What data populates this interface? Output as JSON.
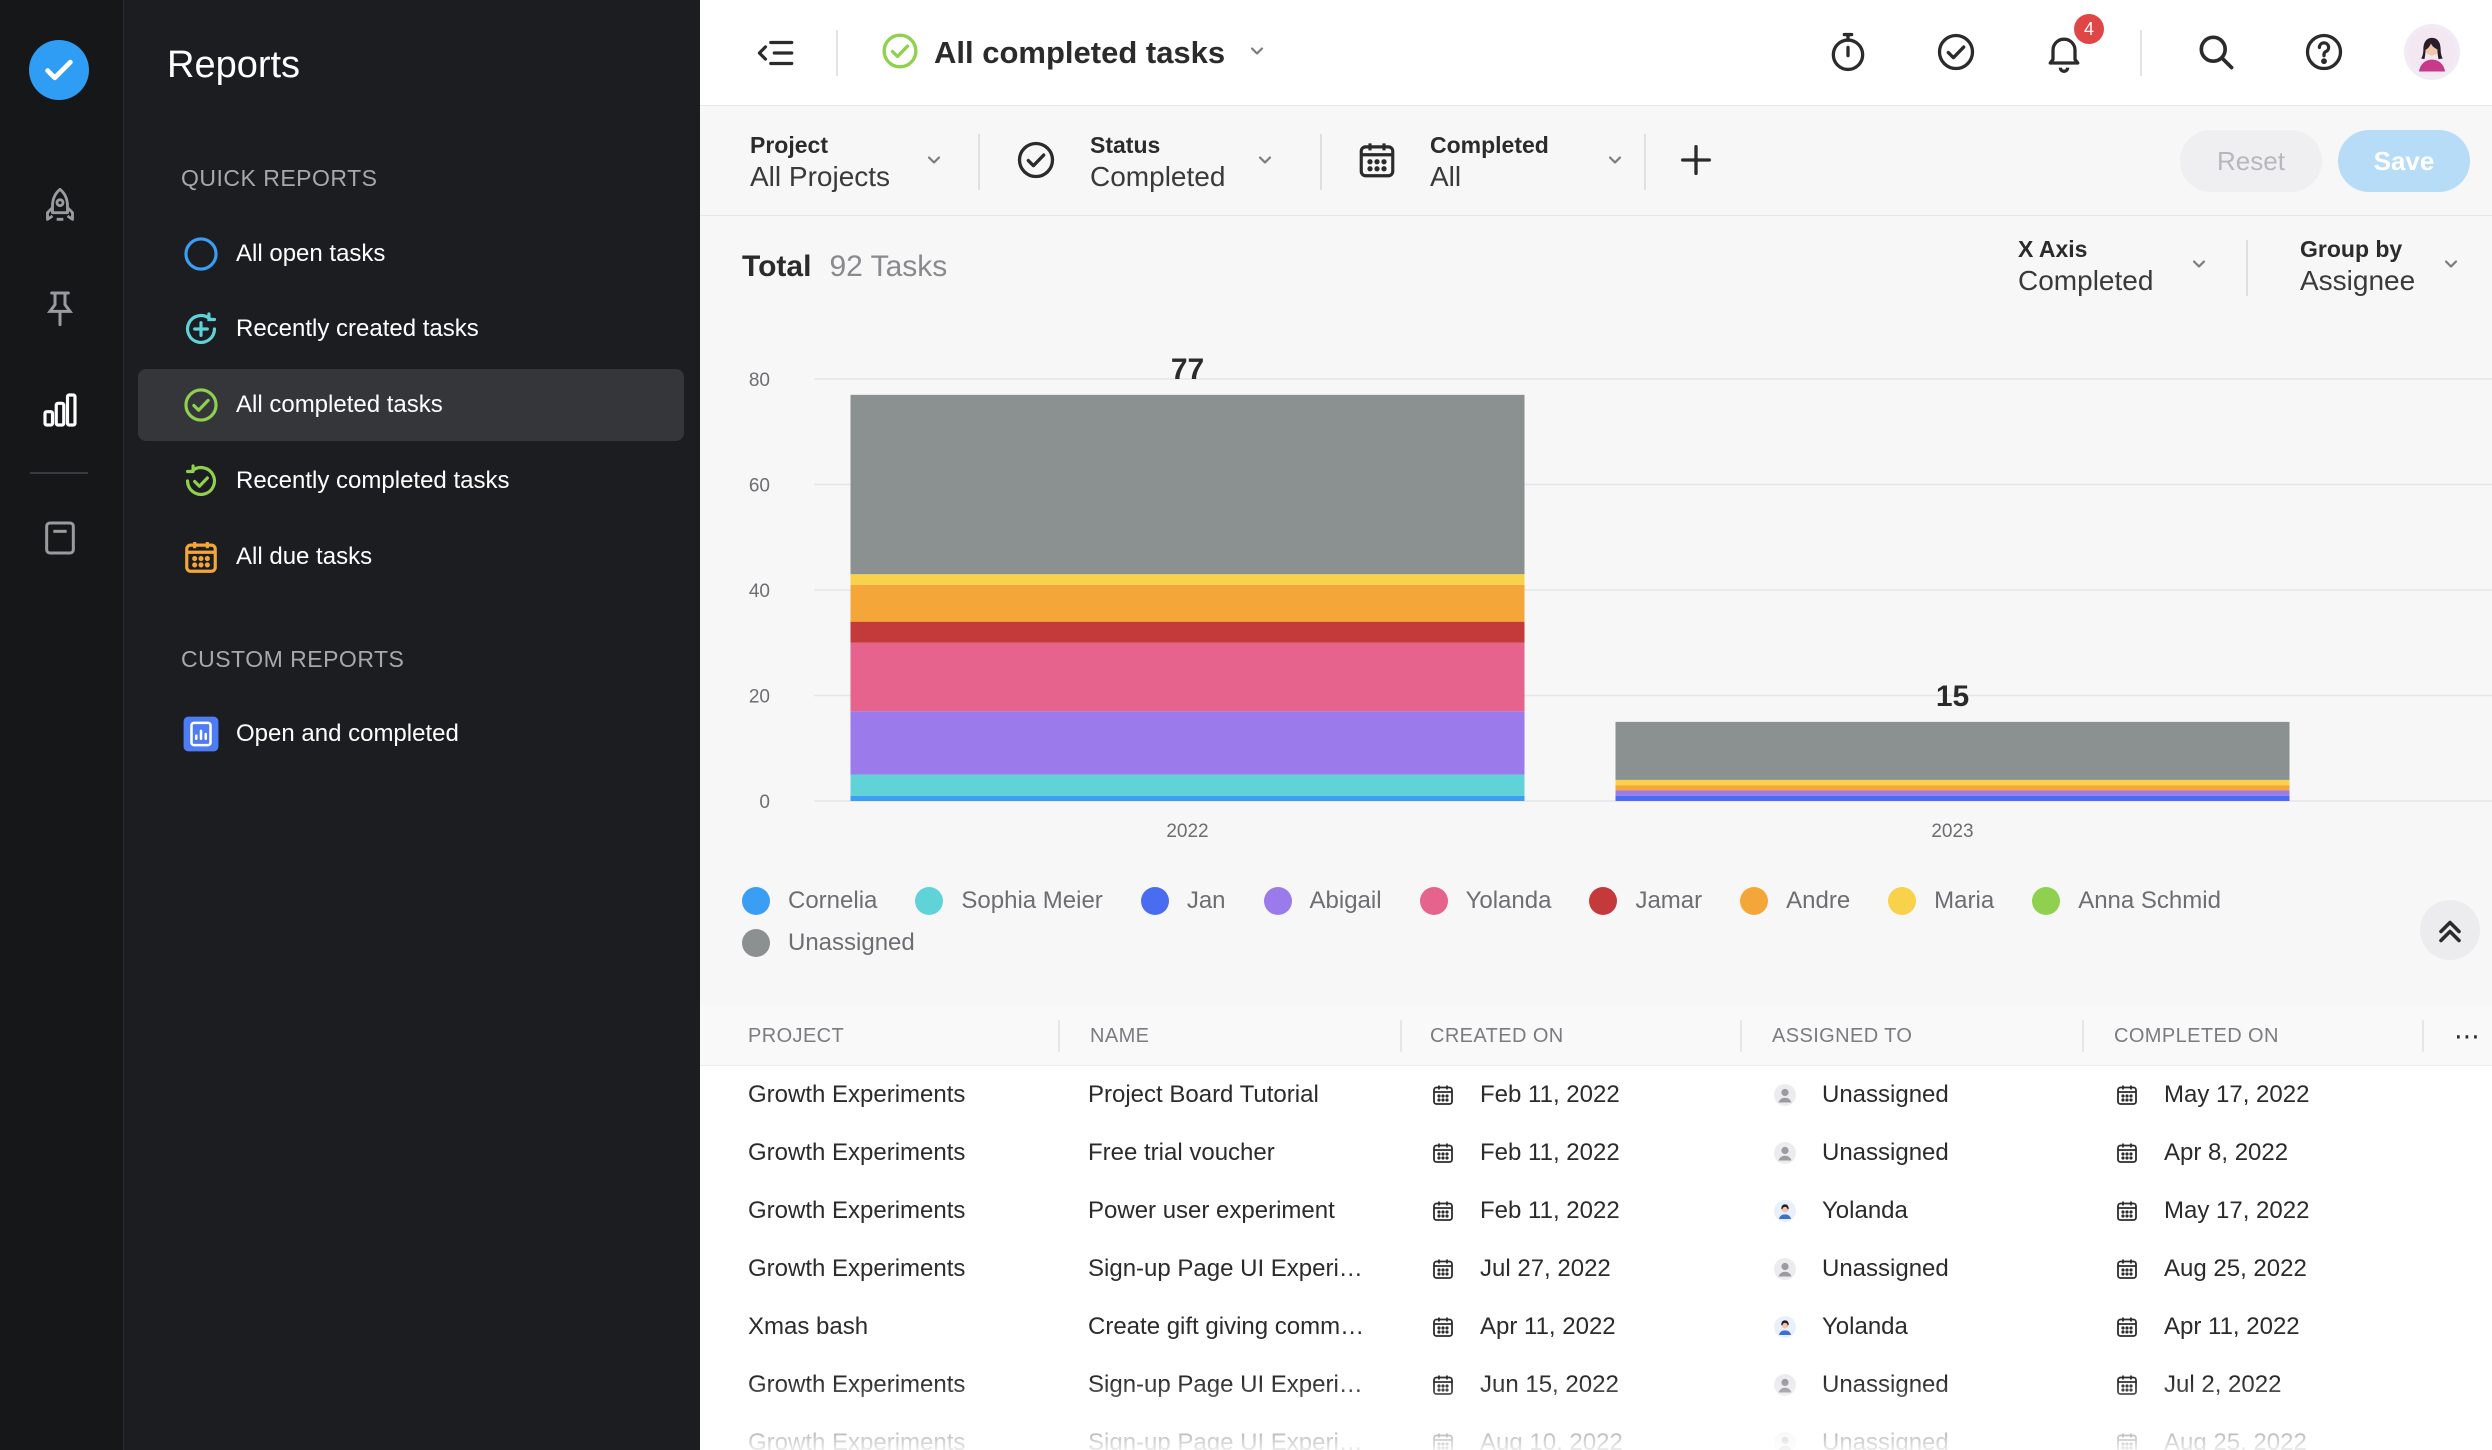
{
  "sidebar": {
    "title": "Reports",
    "quick_reports_label": "QUICK REPORTS",
    "custom_reports_label": "CUSTOM REPORTS",
    "quick_items": [
      {
        "label": "All open tasks",
        "icon": "open-circle-icon"
      },
      {
        "label": "Recently created tasks",
        "icon": "plus-circle-icon"
      },
      {
        "label": "All completed tasks",
        "icon": "check-circle-icon"
      },
      {
        "label": "Recently completed tasks",
        "icon": "refresh-check-icon"
      },
      {
        "label": "All due tasks",
        "icon": "calendar-icon"
      }
    ],
    "custom_items": [
      {
        "label": "Open and completed",
        "icon": "report-icon"
      }
    ]
  },
  "topbar": {
    "view_title": "All completed tasks",
    "notification_count": "4"
  },
  "filters": {
    "project": {
      "label": "Project",
      "value": "All Projects"
    },
    "status": {
      "label": "Status",
      "value": "Completed"
    },
    "completed": {
      "label": "Completed",
      "value": "All"
    },
    "reset_label": "Reset",
    "save_label": "Save"
  },
  "summary": {
    "total_label": "Total",
    "total_value": "92 Tasks",
    "x_axis": {
      "label": "X Axis",
      "value": "Completed"
    },
    "group_by": {
      "label": "Group by",
      "value": "Assignee"
    }
  },
  "chart_data": {
    "type": "bar",
    "stacked": true,
    "categories": [
      "2022",
      "2023"
    ],
    "totals": [
      77,
      15
    ],
    "ylim": [
      0,
      80
    ],
    "yticks": [
      0,
      20,
      40,
      60,
      80
    ],
    "series": [
      {
        "name": "Cornelia",
        "color": "#3b9ef5",
        "values": [
          1,
          0
        ]
      },
      {
        "name": "Sophia Meier",
        "color": "#5fd3d8",
        "values": [
          4,
          0
        ]
      },
      {
        "name": "Jan",
        "color": "#4a6cf0",
        "values": [
          0,
          1
        ]
      },
      {
        "name": "Abigail",
        "color": "#9b7beb",
        "values": [
          12,
          1
        ]
      },
      {
        "name": "Yolanda",
        "color": "#e5638c",
        "values": [
          13,
          0
        ]
      },
      {
        "name": "Jamar",
        "color": "#c43a3a",
        "values": [
          4,
          0
        ]
      },
      {
        "name": "Andre",
        "color": "#f5a638",
        "values": [
          7,
          1
        ]
      },
      {
        "name": "Maria",
        "color": "#f7d24a",
        "values": [
          2,
          1
        ]
      },
      {
        "name": "Anna Schmid",
        "color": "#8fd14f",
        "values": [
          0,
          0
        ]
      },
      {
        "name": "Unassigned",
        "color": "#8b9091",
        "values": [
          34,
          11
        ]
      }
    ]
  },
  "table": {
    "columns": [
      "PROJECT",
      "NAME",
      "CREATED ON",
      "ASSIGNED TO",
      "COMPLETED ON"
    ],
    "rows": [
      {
        "project": "Growth Experiments",
        "name": "Project Board Tutorial",
        "created": "Feb 11, 2022",
        "assignee": "Unassigned",
        "assignee_avatar": "person-icon",
        "completed": "May 17, 2022"
      },
      {
        "project": "Growth Experiments",
        "name": "Free trial voucher",
        "created": "Feb 11, 2022",
        "assignee": "Unassigned",
        "assignee_avatar": "person-icon",
        "completed": "Apr 8, 2022"
      },
      {
        "project": "Growth Experiments",
        "name": "Power user experiment",
        "created": "Feb 11, 2022",
        "assignee": "Yolanda",
        "assignee_avatar": "avatar-yolanda",
        "completed": "May 17, 2022"
      },
      {
        "project": "Growth Experiments",
        "name": "Sign-up Page UI Experi…",
        "created": "Jul 27, 2022",
        "assignee": "Unassigned",
        "assignee_avatar": "person-icon",
        "completed": "Aug 25, 2022"
      },
      {
        "project": "Xmas bash",
        "name": "Create gift giving comm…",
        "created": "Apr 11, 2022",
        "assignee": "Yolanda",
        "assignee_avatar": "avatar-yolanda",
        "completed": "Apr 11, 2022"
      },
      {
        "project": "Growth Experiments",
        "name": "Sign-up Page UI Experi…",
        "created": "Jun 15, 2022",
        "assignee": "Unassigned",
        "assignee_avatar": "person-icon",
        "completed": "Jul 2, 2022"
      },
      {
        "project": "Growth Experiments",
        "name": "Sign-up Page UI Experi…",
        "created": "Aug 10, 2022",
        "assignee": "Unassigned",
        "assignee_avatar": "person-icon",
        "completed": "Aug 25, 2022"
      }
    ]
  }
}
